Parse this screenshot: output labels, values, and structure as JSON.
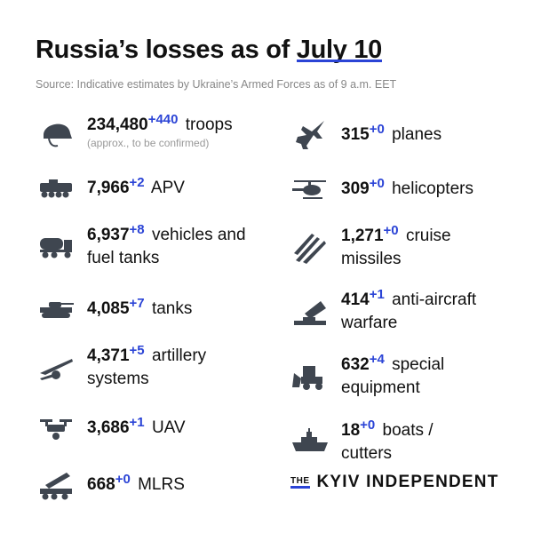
{
  "header": {
    "title_prefix": "Russia’s losses as of",
    "title_date": "July 10",
    "source": "Source: Indicative estimates by Ukraine’s Armed Forces as of 9 a.m. EET"
  },
  "colors": {
    "accent": "#2b44d6",
    "icon": "#3f4650"
  },
  "left": [
    {
      "icon": "helmet-icon",
      "value": "234,480",
      "delta": "+440",
      "label": "troops",
      "note": "(approx., to be confirmed)"
    },
    {
      "icon": "apv-icon",
      "value": "7,966",
      "delta": "+2",
      "label": "APV"
    },
    {
      "icon": "fuel-truck-icon",
      "value": "6,937",
      "delta": "+8",
      "label": "vehicles and fuel tanks"
    },
    {
      "icon": "tank-icon",
      "value": "4,085",
      "delta": "+7",
      "label": "tanks"
    },
    {
      "icon": "artillery-icon",
      "value": "4,371",
      "delta": "+5",
      "label": "artillery systems"
    },
    {
      "icon": "drone-icon",
      "value": "3,686",
      "delta": "+1",
      "label": "UAV"
    },
    {
      "icon": "mlrs-icon",
      "value": "668",
      "delta": "+0",
      "label": "MLRS"
    }
  ],
  "right": [
    {
      "icon": "plane-icon",
      "value": "315",
      "delta": "+0",
      "label": "planes"
    },
    {
      "icon": "helicopter-icon",
      "value": "309",
      "delta": "+0",
      "label": "helicopters"
    },
    {
      "icon": "missile-icon",
      "value": "1,271",
      "delta": "+0",
      "label": "cruise missiles"
    },
    {
      "icon": "anti-aircraft-icon",
      "value": "414",
      "delta": "+1",
      "label": "anti-aircraft warfare"
    },
    {
      "icon": "bulldozer-icon",
      "value": "632",
      "delta": "+4",
      "label": "special equipment"
    },
    {
      "icon": "ship-icon",
      "value": "18",
      "delta": "+0",
      "label": "boats / cutters"
    }
  ],
  "logo": {
    "the": "THE",
    "name": "KYIV INDEPENDENT"
  }
}
